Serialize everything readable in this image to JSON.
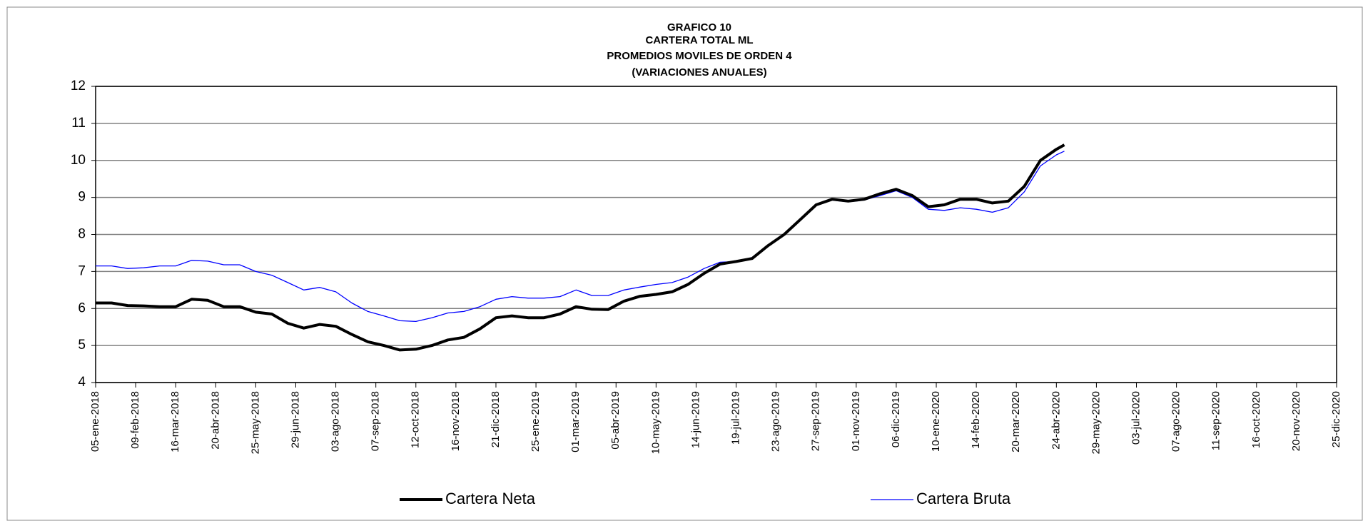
{
  "chart_data": {
    "type": "line",
    "title": [
      "GRAFICO 10",
      "CARTERA TOTAL  ML",
      "PROMEDIOS MOVILES DE ORDEN 4",
      "(VARIACIONES  ANUALES)"
    ],
    "x": [
      "2018-01-05",
      "2018-01-19",
      "2018-02-02",
      "2018-02-16",
      "2018-03-02",
      "2018-03-16",
      "2018-03-30",
      "2018-04-13",
      "2018-04-27",
      "2018-05-11",
      "2018-05-25",
      "2018-06-08",
      "2018-06-22",
      "2018-07-06",
      "2018-07-20",
      "2018-08-03",
      "2018-08-17",
      "2018-08-31",
      "2018-09-14",
      "2018-09-28",
      "2018-10-12",
      "2018-10-26",
      "2018-11-09",
      "2018-11-23",
      "2018-12-07",
      "2018-12-21",
      "2019-01-04",
      "2019-01-18",
      "2019-02-01",
      "2019-02-15",
      "2019-03-01",
      "2019-03-15",
      "2019-03-29",
      "2019-04-12",
      "2019-04-26",
      "2019-05-10",
      "2019-05-24",
      "2019-06-07",
      "2019-06-21",
      "2019-07-05",
      "2019-07-19",
      "2019-08-02",
      "2019-08-16",
      "2019-08-30",
      "2019-09-13",
      "2019-09-27",
      "2019-10-11",
      "2019-10-25",
      "2019-11-08",
      "2019-11-22",
      "2019-12-06",
      "2019-12-20",
      "2020-01-03",
      "2020-01-17",
      "2020-01-31",
      "2020-02-14",
      "2020-02-28",
      "2020-03-13",
      "2020-03-27",
      "2020-04-10",
      "2020-04-24",
      "2020-05-01"
    ],
    "series": [
      {
        "name": "Cartera Neta",
        "color": "#000000",
        "width": 4,
        "values": [
          6.15,
          6.15,
          6.08,
          6.07,
          6.05,
          6.05,
          6.25,
          6.22,
          6.05,
          6.05,
          5.9,
          5.85,
          5.6,
          5.47,
          5.57,
          5.52,
          5.3,
          5.1,
          5.0,
          4.88,
          4.9,
          5.0,
          5.15,
          5.22,
          5.45,
          5.75,
          5.8,
          5.75,
          5.75,
          5.85,
          6.05,
          5.98,
          5.97,
          6.2,
          6.33,
          6.38,
          6.45,
          6.65,
          6.95,
          7.2,
          7.27,
          7.35,
          7.7,
          8.0,
          8.4,
          8.8,
          8.95,
          8.9,
          8.95,
          9.1,
          9.22,
          9.05,
          8.75,
          8.8,
          8.95,
          8.95,
          8.85,
          8.9,
          9.3,
          10.0,
          10.3,
          10.42
        ]
      },
      {
        "name": "Cartera Bruta",
        "color": "#0000ff",
        "width": 1.3,
        "values": [
          7.15,
          7.15,
          7.08,
          7.1,
          7.15,
          7.15,
          7.3,
          7.28,
          7.18,
          7.18,
          7.0,
          6.9,
          6.7,
          6.5,
          6.57,
          6.45,
          6.15,
          5.92,
          5.8,
          5.67,
          5.65,
          5.75,
          5.88,
          5.92,
          6.05,
          6.25,
          6.32,
          6.28,
          6.28,
          6.32,
          6.5,
          6.35,
          6.35,
          6.5,
          6.58,
          6.65,
          6.7,
          6.85,
          7.08,
          7.25,
          7.27,
          7.38,
          7.7,
          8.0,
          8.4,
          8.78,
          8.93,
          8.88,
          8.93,
          9.05,
          9.18,
          9.0,
          8.68,
          8.65,
          8.72,
          8.68,
          8.6,
          8.72,
          9.15,
          9.85,
          10.15,
          10.25
        ]
      }
    ],
    "xlim": [
      "2018-01-05",
      "2020-12-25"
    ],
    "xticks": [
      {
        "value": "2018-01-05",
        "label": "05-ene-2018"
      },
      {
        "value": "2018-02-09",
        "label": "09-feb-2018"
      },
      {
        "value": "2018-03-16",
        "label": "16-mar-2018"
      },
      {
        "value": "2018-04-20",
        "label": "20-abr-2018"
      },
      {
        "value": "2018-05-25",
        "label": "25-may-2018"
      },
      {
        "value": "2018-06-29",
        "label": "29-jun-2018"
      },
      {
        "value": "2018-08-03",
        "label": "03-ago-2018"
      },
      {
        "value": "2018-09-07",
        "label": "07-sep-2018"
      },
      {
        "value": "2018-10-12",
        "label": "12-oct-2018"
      },
      {
        "value": "2018-11-16",
        "label": "16-nov-2018"
      },
      {
        "value": "2018-12-21",
        "label": "21-dic-2018"
      },
      {
        "value": "2019-01-25",
        "label": "25-ene-2019"
      },
      {
        "value": "2019-03-01",
        "label": "01-mar-2019"
      },
      {
        "value": "2019-04-05",
        "label": "05-abr-2019"
      },
      {
        "value": "2019-05-10",
        "label": "10-may-2019"
      },
      {
        "value": "2019-06-14",
        "label": "14-jun-2019"
      },
      {
        "value": "2019-07-19",
        "label": "19-jul-2019"
      },
      {
        "value": "2019-08-23",
        "label": "23-ago-2019"
      },
      {
        "value": "2019-09-27",
        "label": "27-sep-2019"
      },
      {
        "value": "2019-11-01",
        "label": "01-nov-2019"
      },
      {
        "value": "2019-12-06",
        "label": "06-dic-2019"
      },
      {
        "value": "2020-01-10",
        "label": "10-ene-2020"
      },
      {
        "value": "2020-02-14",
        "label": "14-feb-2020"
      },
      {
        "value": "2020-03-20",
        "label": "20-mar-2020"
      },
      {
        "value": "2020-04-24",
        "label": "24-abr-2020"
      },
      {
        "value": "2020-05-29",
        "label": "29-may-2020"
      },
      {
        "value": "2020-07-03",
        "label": "03-jul-2020"
      },
      {
        "value": "2020-08-07",
        "label": "07-ago-2020"
      },
      {
        "value": "2020-09-11",
        "label": "11-sep-2020"
      },
      {
        "value": "2020-10-16",
        "label": "16-oct-2020"
      },
      {
        "value": "2020-11-20",
        "label": "20-nov-2020"
      },
      {
        "value": "2020-12-25",
        "label": "25-dic-2020"
      }
    ],
    "ylim": [
      4,
      12
    ],
    "yticks": [
      4,
      5,
      6,
      7,
      8,
      9,
      10,
      11,
      12
    ],
    "grid": true,
    "legend": "bottom"
  }
}
